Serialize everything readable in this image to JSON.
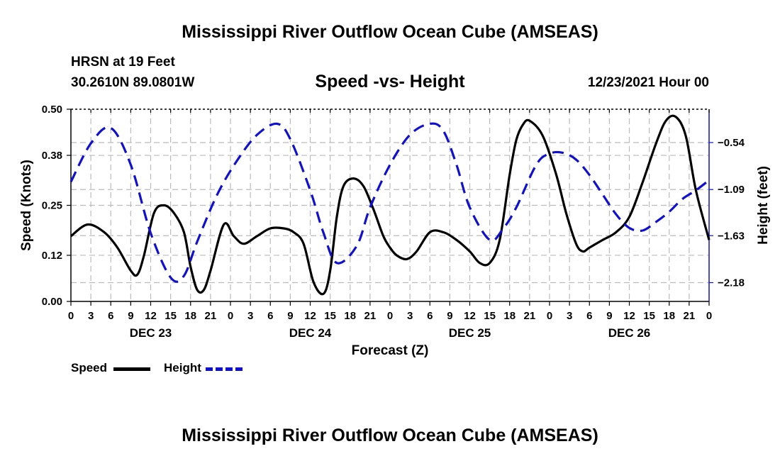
{
  "header": {
    "title": "Mississippi River Outflow Ocean Cube (AMSEAS)",
    "station": "HRSN at 19 Feet",
    "coords": "30.2610N  89.0801W",
    "subtitle": "Speed -vs- Height",
    "datetime": "12/23/2021 Hour 00"
  },
  "footer": {
    "title": "Mississippi River Outflow Ocean Cube (AMSEAS)"
  },
  "legend": {
    "speed_label": "Speed",
    "height_label": "Height",
    "speed_color": "#000000",
    "height_color": "#1010d0"
  },
  "chart_data": {
    "type": "line",
    "title": "Speed -vs- Height",
    "xlabel": "Forecast (Z)",
    "ylabel": "Speed (Knots)",
    "y2label": "Height (feet)",
    "xlim": [
      0,
      96
    ],
    "ylim": [
      0,
      0.5
    ],
    "y2lim": [
      -2.4,
      -0.15
    ],
    "x_ticks": [
      0,
      3,
      6,
      9,
      12,
      15,
      18,
      21,
      24,
      27,
      30,
      33,
      36,
      39,
      42,
      45,
      48,
      51,
      54,
      57,
      60,
      63,
      66,
      69,
      72,
      75,
      78,
      81,
      84,
      87,
      90,
      93,
      96
    ],
    "x_tick_labels": [
      "0",
      "3",
      "6",
      "9",
      "12",
      "15",
      "18",
      "21",
      "0",
      "3",
      "6",
      "9",
      "12",
      "15",
      "18",
      "21",
      "0",
      "3",
      "6",
      "9",
      "12",
      "15",
      "18",
      "21",
      "0",
      "3",
      "6",
      "9",
      "12",
      "15",
      "18",
      "21",
      "0"
    ],
    "day_labels": [
      {
        "label": "DEC 23",
        "x": 12
      },
      {
        "label": "DEC 24",
        "x": 36
      },
      {
        "label": "DEC 25",
        "x": 60
      },
      {
        "label": "DEC 26",
        "x": 84
      }
    ],
    "y_ticks": [
      0.0,
      0.12,
      0.25,
      0.38,
      0.5
    ],
    "y_tick_labels": [
      "0.00",
      "0.12",
      "0.25",
      "0.38",
      "0.50"
    ],
    "y2_ticks": [
      -0.54,
      -1.09,
      -1.63,
      -2.18
    ],
    "y2_tick_labels": [
      "−0.54",
      "−1.09",
      "−1.63",
      "−2.18"
    ],
    "grid": true,
    "series": [
      {
        "name": "Speed",
        "axis": "left",
        "style": "solid",
        "color": "#000000",
        "x": [
          0,
          2.5,
          5,
          7,
          9,
          10,
          11,
          12.5,
          14,
          15.5,
          17,
          18,
          19,
          20,
          21,
          23,
          24.5,
          26,
          28,
          30,
          32,
          33.5,
          35,
          36.5,
          38,
          39,
          40,
          41,
          42.5,
          44,
          45.5,
          47,
          48,
          49,
          50.5,
          52,
          54,
          56,
          58,
          60,
          61.5,
          63,
          64.5,
          66,
          67,
          68,
          69,
          71,
          73,
          74.5,
          76,
          77,
          78,
          80,
          82,
          84,
          86,
          88,
          89.5,
          91,
          92.5,
          94,
          96
        ],
        "values": [
          0.17,
          0.2,
          0.18,
          0.14,
          0.08,
          0.07,
          0.12,
          0.23,
          0.25,
          0.23,
          0.18,
          0.09,
          0.03,
          0.03,
          0.08,
          0.2,
          0.17,
          0.15,
          0.17,
          0.19,
          0.19,
          0.18,
          0.15,
          0.05,
          0.02,
          0.08,
          0.22,
          0.3,
          0.32,
          0.3,
          0.24,
          0.17,
          0.14,
          0.12,
          0.11,
          0.13,
          0.18,
          0.18,
          0.16,
          0.13,
          0.1,
          0.1,
          0.16,
          0.33,
          0.42,
          0.46,
          0.47,
          0.43,
          0.33,
          0.23,
          0.15,
          0.13,
          0.14,
          0.16,
          0.18,
          0.22,
          0.31,
          0.41,
          0.47,
          0.48,
          0.43,
          0.29,
          0.16
        ]
      },
      {
        "name": "Height",
        "axis": "right",
        "style": "dashed",
        "color": "#1010d0",
        "x": [
          0,
          3,
          6,
          9,
          12,
          15,
          17,
          19,
          22,
          25,
          28,
          31,
          33,
          36,
          38,
          40,
          43,
          45,
          48,
          51,
          54,
          56,
          58,
          60,
          63,
          65,
          67,
          70,
          72,
          74,
          76,
          78,
          80,
          82,
          84,
          86,
          88,
          90,
          92,
          94,
          96
        ],
        "values": [
          -1.0,
          -0.55,
          -0.37,
          -0.8,
          -1.6,
          -2.12,
          -2.1,
          -1.7,
          -1.15,
          -0.75,
          -0.45,
          -0.32,
          -0.5,
          -1.1,
          -1.6,
          -1.95,
          -1.75,
          -1.3,
          -0.8,
          -0.45,
          -0.32,
          -0.4,
          -0.8,
          -1.3,
          -1.68,
          -1.55,
          -1.3,
          -0.8,
          -0.67,
          -0.66,
          -0.74,
          -0.92,
          -1.15,
          -1.38,
          -1.54,
          -1.57,
          -1.47,
          -1.35,
          -1.2,
          -1.1,
          -0.98
        ]
      }
    ]
  }
}
